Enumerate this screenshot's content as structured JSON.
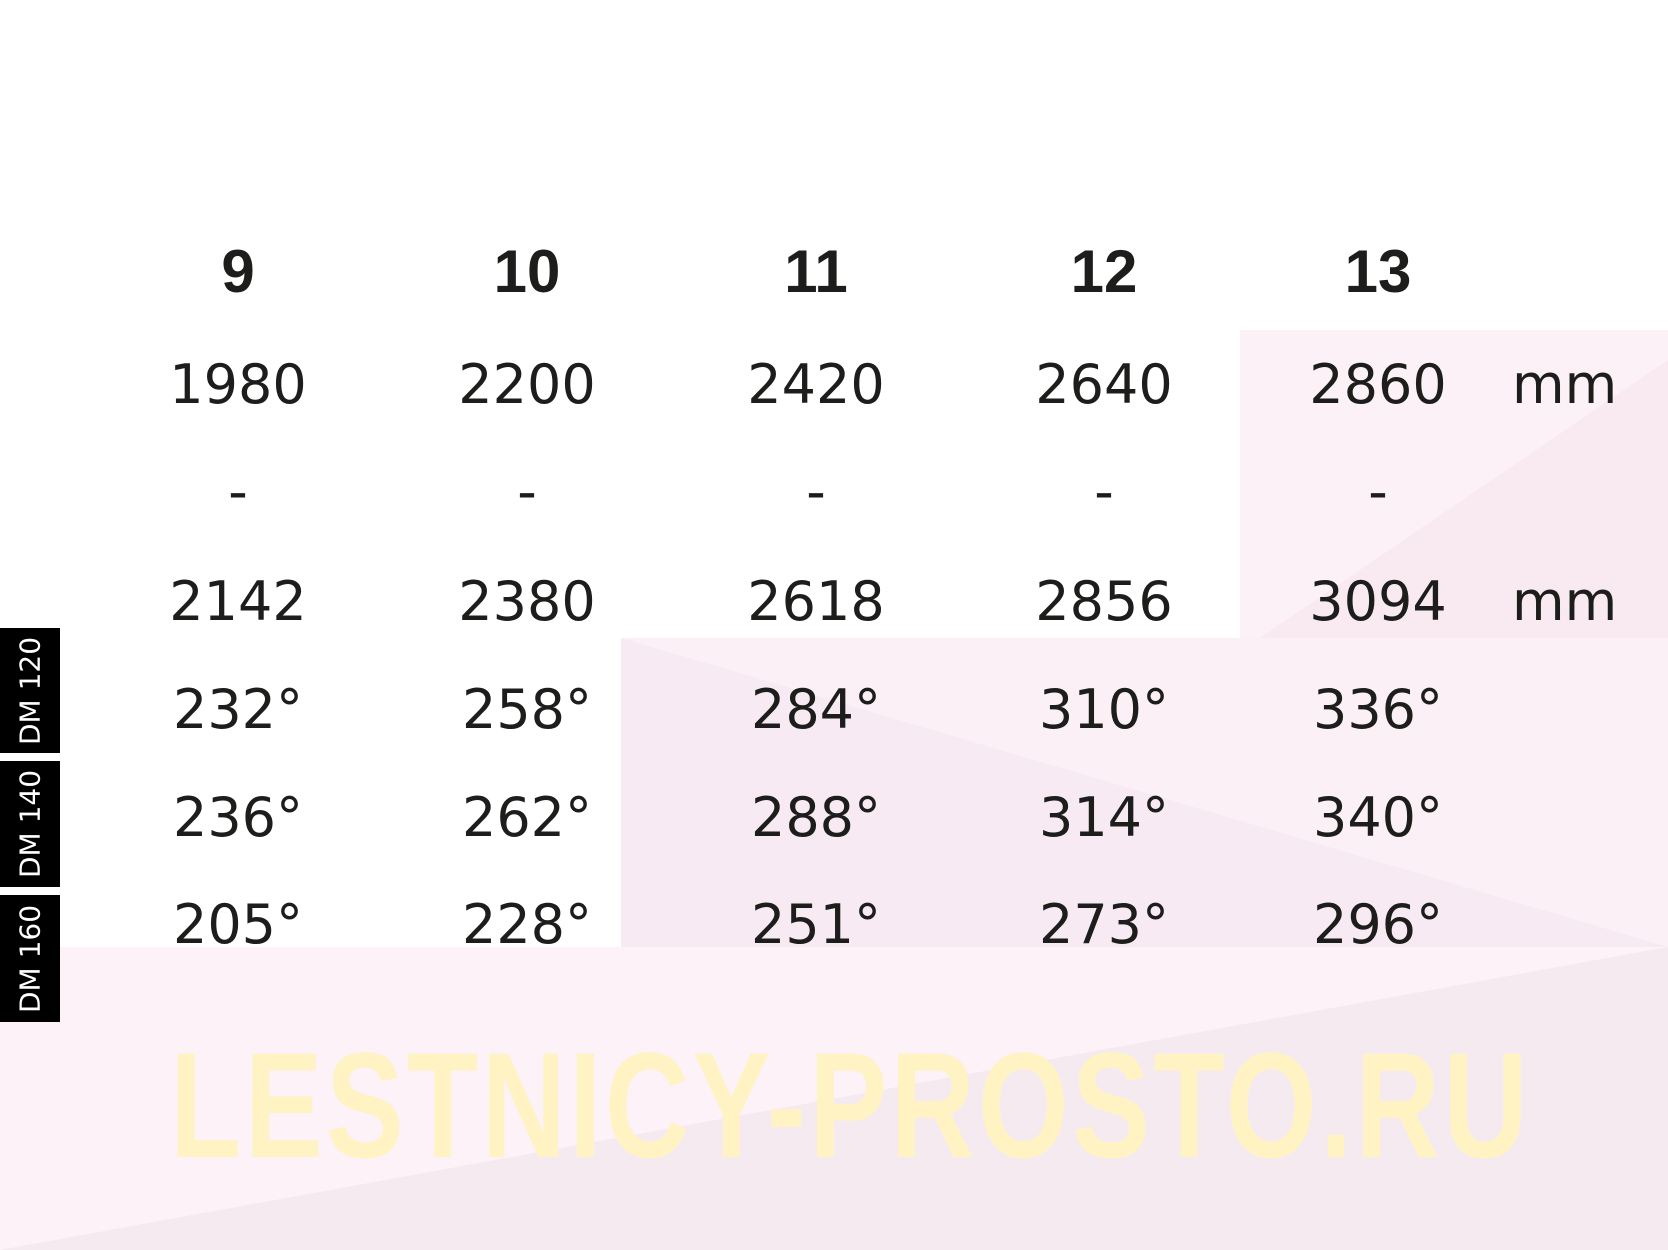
{
  "columns": [
    "9",
    "10",
    "11",
    "12",
    "13"
  ],
  "rows": {
    "length_min": [
      "1980",
      "2200",
      "2420",
      "2640",
      "2860"
    ],
    "separator": [
      "-",
      "-",
      "-",
      "-",
      "-"
    ],
    "length_max": [
      "2142",
      "2380",
      "2618",
      "2856",
      "3094"
    ],
    "dm120": [
      "232°",
      "258°",
      "284°",
      "310°",
      "336°"
    ],
    "dm140": [
      "236°",
      "262°",
      "288°",
      "314°",
      "340°"
    ],
    "dm160": [
      "205°",
      "228°",
      "251°",
      "273°",
      "296°"
    ]
  },
  "unit": "mm",
  "row_labels": [
    "DM 120",
    "DM 140",
    "DM 160"
  ],
  "watermark": "LESTNICY-PROSTO.RU",
  "colors": {
    "background_pink": "#fbf0f5",
    "watermark": "#fff3c4",
    "label_bg": "#000000"
  }
}
